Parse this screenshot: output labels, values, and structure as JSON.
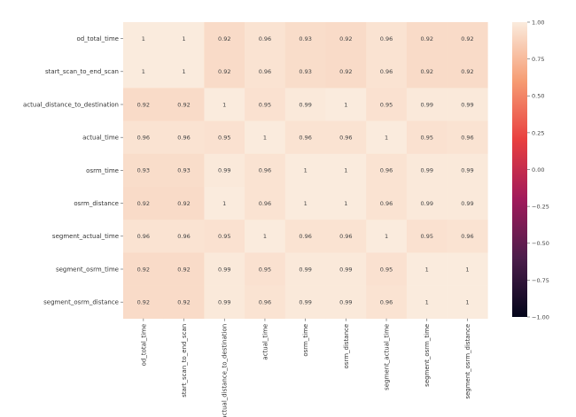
{
  "chart_data": {
    "type": "heatmap",
    "title": "",
    "xlabel": "",
    "ylabel": "",
    "row_labels": [
      "od_total_time",
      "start_scan_to_end_scan",
      "actual_distance_to_destination",
      "actual_time",
      "osrm_time",
      "osrm_distance",
      "segment_actual_time",
      "segment_osrm_time",
      "segment_osrm_distance"
    ],
    "col_labels": [
      "od_total_time",
      "start_scan_to_end_scan",
      "actual_distance_to_destination",
      "actual_time",
      "osrm_time",
      "osrm_distance",
      "segment_actual_time",
      "segment_osrm_time",
      "segment_osrm_distance"
    ],
    "values": [
      [
        1,
        1,
        0.92,
        0.96,
        0.93,
        0.92,
        0.96,
        0.92,
        0.92
      ],
      [
        1,
        1,
        0.92,
        0.96,
        0.93,
        0.92,
        0.96,
        0.92,
        0.92
      ],
      [
        0.92,
        0.92,
        1,
        0.95,
        0.99,
        1,
        0.95,
        0.99,
        0.99
      ],
      [
        0.96,
        0.96,
        0.95,
        1,
        0.96,
        0.96,
        1,
        0.95,
        0.96
      ],
      [
        0.93,
        0.93,
        0.99,
        0.96,
        1,
        1,
        0.96,
        0.99,
        0.99
      ],
      [
        0.92,
        0.92,
        1,
        0.96,
        1,
        1,
        0.96,
        0.99,
        0.99
      ],
      [
        0.96,
        0.96,
        0.95,
        1,
        0.96,
        0.96,
        1,
        0.95,
        0.96
      ],
      [
        0.92,
        0.92,
        0.99,
        0.95,
        0.99,
        0.99,
        0.95,
        1,
        1
      ],
      [
        0.92,
        0.92,
        0.99,
        0.96,
        0.99,
        0.99,
        0.96,
        1,
        1
      ]
    ],
    "colorbar": {
      "range": [
        -1.0,
        1.0
      ],
      "ticks": [
        "1.00",
        "0.75",
        "0.50",
        "0.25",
        "0.00",
        "−0.25",
        "−0.50",
        "−0.75",
        "−1.00"
      ],
      "tick_values": [
        1.0,
        0.75,
        0.5,
        0.25,
        0.0,
        -0.25,
        -0.5,
        -0.75,
        -1.0
      ],
      "colormap": "rocket",
      "stops": [
        "#03051a",
        "#4c1d4b",
        "#a11a5b",
        "#e83f3f",
        "#f69c73",
        "#faebdd"
      ]
    }
  }
}
